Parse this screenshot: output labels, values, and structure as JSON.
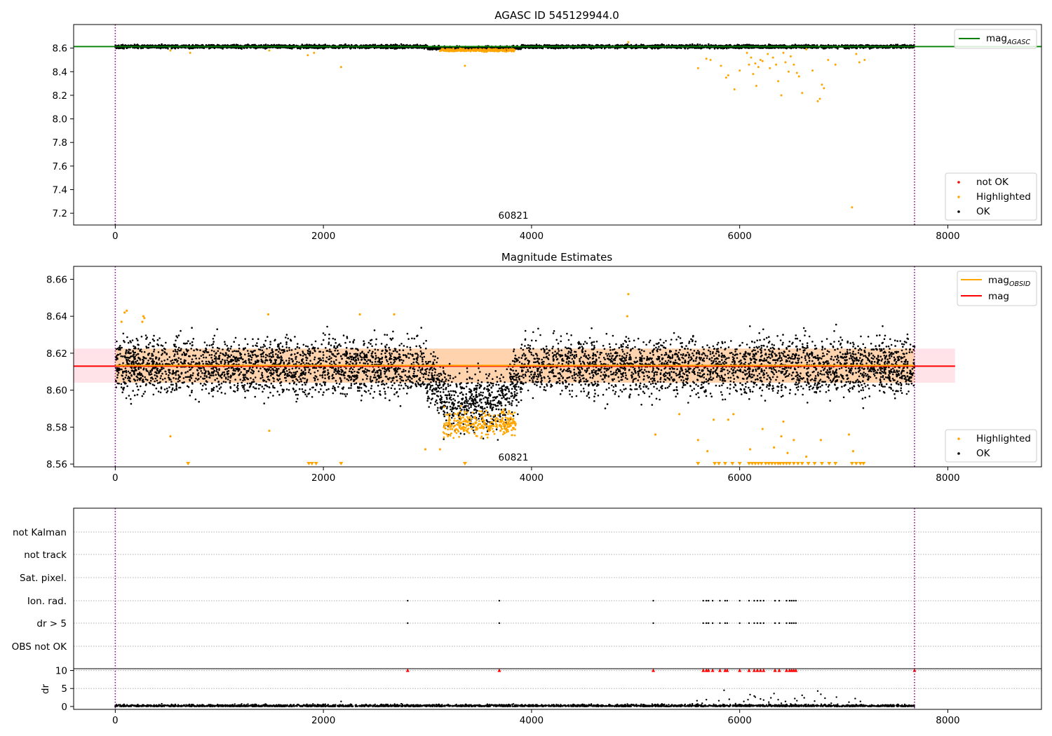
{
  "chart_data": [
    {
      "type": "scatter",
      "title": "AGASC ID 545129944.0",
      "obsid_label": "60821",
      "xlim": [
        -400,
        8900
      ],
      "ylim": [
        7.1,
        8.8
      ],
      "xticks": [
        0,
        2000,
        4000,
        6000,
        8000
      ],
      "yticks": [
        7.2,
        7.4,
        7.6,
        7.8,
        8.0,
        8.2,
        8.4,
        8.6
      ],
      "ytick_labels": [
        "7.2",
        "7.4",
        "7.6",
        "7.8",
        "8.0",
        "8.2",
        "8.4",
        "8.6"
      ],
      "obs_boundaries": [
        0,
        7680
      ],
      "mag_agasc": 8.613,
      "legend_lines": [
        {
          "label": "mag",
          "sub": "AGASC",
          "color": "#008000"
        }
      ],
      "legend_points": [
        {
          "label": "not OK",
          "color": "#ff0000"
        },
        {
          "label": "Highlighted",
          "color": "#ffa500"
        },
        {
          "label": "OK",
          "color": "#000000"
        }
      ],
      "highlighted_outliers": [
        [
          530,
          8.58
        ],
        [
          720,
          8.56
        ],
        [
          1480,
          8.58
        ],
        [
          1850,
          8.54
        ],
        [
          1910,
          8.56
        ],
        [
          2170,
          8.44
        ],
        [
          3360,
          8.45
        ],
        [
          4930,
          8.65
        ],
        [
          5600,
          8.43
        ],
        [
          5680,
          8.51
        ],
        [
          5720,
          8.5
        ],
        [
          5820,
          8.45
        ],
        [
          5870,
          8.35
        ],
        [
          5890,
          8.37
        ],
        [
          5950,
          8.25
        ],
        [
          6000,
          8.41
        ],
        [
          6070,
          8.56
        ],
        [
          6090,
          8.46
        ],
        [
          6110,
          8.52
        ],
        [
          6130,
          8.38
        ],
        [
          6150,
          8.47
        ],
        [
          6160,
          8.28
        ],
        [
          6180,
          8.44
        ],
        [
          6200,
          8.5
        ],
        [
          6220,
          8.49
        ],
        [
          6270,
          8.55
        ],
        [
          6290,
          8.43
        ],
        [
          6320,
          8.52
        ],
        [
          6350,
          8.46
        ],
        [
          6370,
          8.32
        ],
        [
          6400,
          8.2
        ],
        [
          6420,
          8.56
        ],
        [
          6440,
          8.48
        ],
        [
          6470,
          8.4
        ],
        [
          6490,
          8.53
        ],
        [
          6520,
          8.46
        ],
        [
          6550,
          8.39
        ],
        [
          6570,
          8.36
        ],
        [
          6600,
          8.22
        ],
        [
          6640,
          8.59
        ],
        [
          6700,
          8.41
        ],
        [
          6750,
          8.15
        ],
        [
          6770,
          8.17
        ],
        [
          6790,
          8.29
        ],
        [
          6810,
          8.26
        ],
        [
          6850,
          8.5
        ],
        [
          6920,
          8.46
        ],
        [
          7080,
          7.25
        ],
        [
          7120,
          8.55
        ],
        [
          7150,
          8.48
        ],
        [
          7200,
          8.5
        ]
      ]
    },
    {
      "type": "scatter",
      "title": "Magnitude Estimates",
      "obsid_label": "60821",
      "xlim": [
        -400,
        8900
      ],
      "ylim": [
        8.5585,
        8.667
      ],
      "xticks": [
        0,
        2000,
        4000,
        6000,
        8000
      ],
      "yticks": [
        8.56,
        8.58,
        8.6,
        8.62,
        8.64,
        8.66
      ],
      "ytick_labels": [
        "8.56",
        "8.58",
        "8.60",
        "8.62",
        "8.64",
        "8.66"
      ],
      "obs_boundaries": [
        0,
        7680
      ],
      "mag_mean": 8.613,
      "mag_band": [
        8.604,
        8.6225
      ],
      "legend_lines": [
        {
          "label": "mag",
          "sub": "OBSID",
          "color": "#ffa500"
        },
        {
          "label": "mag",
          "sub": "",
          "color": "#ff0000"
        }
      ],
      "legend_points": [
        {
          "label": "Highlighted",
          "color": "#ffa500"
        },
        {
          "label": "OK",
          "color": "#000000"
        }
      ],
      "highlighted_outliers": [
        [
          60,
          8.637
        ],
        [
          90,
          8.642
        ],
        [
          110,
          8.643
        ],
        [
          260,
          8.637
        ],
        [
          270,
          8.64
        ],
        [
          280,
          8.639
        ],
        [
          530,
          8.575
        ],
        [
          1480,
          8.578
        ],
        [
          1470,
          8.641
        ],
        [
          2350,
          8.641
        ],
        [
          2680,
          8.641
        ],
        [
          2980,
          8.568
        ],
        [
          3120,
          8.568
        ],
        [
          4930,
          8.652
        ],
        [
          4920,
          8.64
        ],
        [
          5190,
          8.576
        ],
        [
          5420,
          8.587
        ],
        [
          5600,
          8.573
        ],
        [
          5690,
          8.567
        ],
        [
          5750,
          8.584
        ],
        [
          5890,
          8.584
        ],
        [
          5940,
          8.587
        ],
        [
          6100,
          8.568
        ],
        [
          6220,
          8.579
        ],
        [
          6330,
          8.569
        ],
        [
          6400,
          8.575
        ],
        [
          6420,
          8.583
        ],
        [
          6460,
          8.566
        ],
        [
          6520,
          8.573
        ],
        [
          6640,
          8.564
        ],
        [
          6780,
          8.573
        ],
        [
          7050,
          8.576
        ],
        [
          7090,
          8.567
        ]
      ],
      "clipped_low": [
        700,
        1860,
        1890,
        1930,
        2170,
        3360,
        5600,
        5760,
        5800,
        5860,
        5930,
        6000,
        6090,
        6120,
        6150,
        6180,
        6210,
        6250,
        6280,
        6310,
        6340,
        6370,
        6390,
        6420,
        6450,
        6480,
        6520,
        6560,
        6600,
        6660,
        6720,
        6790,
        6860,
        6920,
        7080,
        7120,
        7160,
        7190
      ]
    },
    {
      "type": "scatter",
      "title": "",
      "xlim": [
        -400,
        8900
      ],
      "xticks": [
        0,
        2000,
        4000,
        6000,
        8000
      ],
      "obs_boundaries": [
        0,
        7680
      ],
      "flag_rows": [
        "not Kalman",
        "not track",
        "Sat. pixel.",
        "Ion. rad.",
        "dr > 5",
        "OBS not OK"
      ],
      "flag_times": [
        2810,
        3690,
        5170,
        5650,
        5680,
        5700,
        5740,
        5810,
        5860,
        5880,
        6000,
        6090,
        6140,
        6170,
        6200,
        6230,
        6340,
        6380,
        6450,
        6480,
        6500,
        6520,
        6540,
        7680
      ],
      "dr_ylabel": "dr",
      "dr_ylim": [
        -0.8,
        10.5
      ],
      "dr_yticks": [
        0,
        5,
        10
      ],
      "dr_ytick_labels": [
        "0",
        "5",
        "10"
      ],
      "dr_clipped_at": 10,
      "dr_outliers": [
        [
          1900,
          0.7
        ],
        [
          2170,
          1.4
        ],
        [
          3690,
          0.5
        ],
        [
          5590,
          1.6
        ],
        [
          5640,
          0.9
        ],
        [
          5680,
          1.9
        ],
        [
          5750,
          0.6
        ],
        [
          5800,
          1.6
        ],
        [
          5850,
          4.5
        ],
        [
          5900,
          2.0
        ],
        [
          5960,
          0.8
        ],
        [
          6040,
          1.4
        ],
        [
          6080,
          1.9
        ],
        [
          6100,
          3.3
        ],
        [
          6140,
          2.9
        ],
        [
          6150,
          2.6
        ],
        [
          6200,
          2.1
        ],
        [
          6230,
          1.8
        ],
        [
          6280,
          1.2
        ],
        [
          6300,
          2.4
        ],
        [
          6330,
          3.6
        ],
        [
          6370,
          1.9
        ],
        [
          6400,
          0.9
        ],
        [
          6440,
          1.4
        ],
        [
          6490,
          0.7
        ],
        [
          6530,
          2.2
        ],
        [
          6550,
          1.6
        ],
        [
          6600,
          3.1
        ],
        [
          6620,
          2.4
        ],
        [
          6720,
          1.5
        ],
        [
          6750,
          4.3
        ],
        [
          6780,
          3.4
        ],
        [
          6820,
          2.3
        ],
        [
          6880,
          0.9
        ],
        [
          6930,
          2.6
        ],
        [
          7050,
          1.2
        ],
        [
          7110,
          2.2
        ],
        [
          7160,
          1.4
        ]
      ]
    }
  ]
}
